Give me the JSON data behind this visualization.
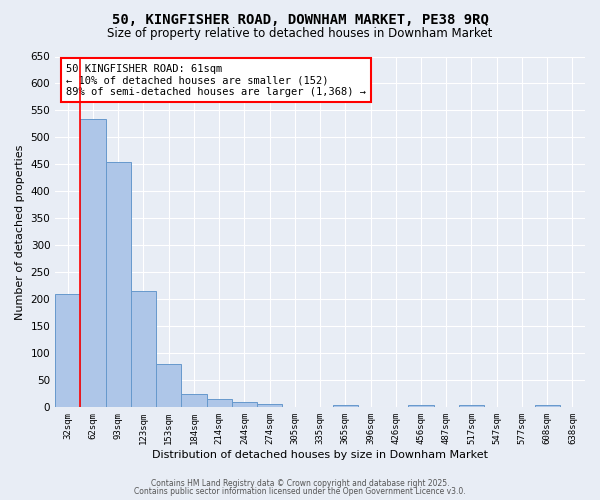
{
  "title1": "50, KINGFISHER ROAD, DOWNHAM MARKET, PE38 9RQ",
  "title2": "Size of property relative to detached houses in Downham Market",
  "xlabel": "Distribution of detached houses by size in Downham Market",
  "ylabel": "Number of detached properties",
  "bin_labels": [
    "32sqm",
    "62sqm",
    "93sqm",
    "123sqm",
    "153sqm",
    "184sqm",
    "214sqm",
    "244sqm",
    "274sqm",
    "305sqm",
    "335sqm",
    "365sqm",
    "396sqm",
    "426sqm",
    "456sqm",
    "487sqm",
    "517sqm",
    "547sqm",
    "577sqm",
    "608sqm",
    "638sqm"
  ],
  "bar_values": [
    210,
    535,
    455,
    215,
    80,
    25,
    15,
    10,
    7,
    0,
    0,
    5,
    0,
    0,
    5,
    0,
    5,
    0,
    0,
    5,
    0
  ],
  "bar_color": "#aec6e8",
  "bar_edge_color": "#5a9fd4",
  "red_line_index": 1,
  "annotation_title": "50 KINGFISHER ROAD: 61sqm",
  "annotation_line2": "← 10% of detached houses are smaller (152)",
  "annotation_line3": "89% of semi-detached houses are larger (1,368) →",
  "ylim": [
    0,
    650
  ],
  "yticks": [
    0,
    50,
    100,
    150,
    200,
    250,
    300,
    350,
    400,
    450,
    500,
    550,
    600,
    650
  ],
  "background_color": "#e8edf5",
  "grid_color": "#ffffff",
  "bar_edge_color2": "#6699cc",
  "footer1": "Contains HM Land Registry data © Crown copyright and database right 2025.",
  "footer2": "Contains public sector information licensed under the Open Government Licence v3.0."
}
